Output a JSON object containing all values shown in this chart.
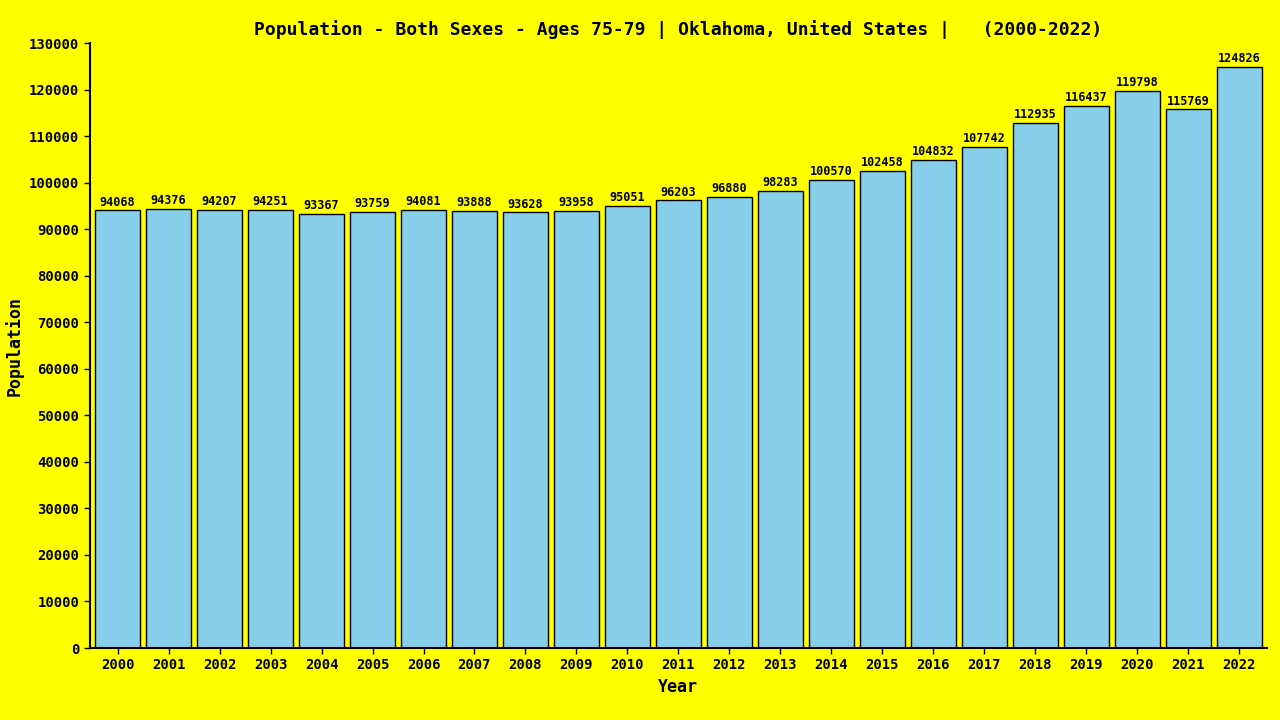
{
  "title": "Population - Both Sexes - Ages 75-79 | Oklahoma, United States |   (2000-2022)",
  "xlabel": "Year",
  "ylabel": "Population",
  "background_color": "#FFFF00",
  "bar_color": "#87CEEB",
  "bar_edge_color": "#000000",
  "years": [
    2000,
    2001,
    2002,
    2003,
    2004,
    2005,
    2006,
    2007,
    2008,
    2009,
    2010,
    2011,
    2012,
    2013,
    2014,
    2015,
    2016,
    2017,
    2018,
    2019,
    2020,
    2021,
    2022
  ],
  "values": [
    94068,
    94376,
    94207,
    94251,
    93367,
    93759,
    94081,
    93888,
    93628,
    93958,
    95051,
    96203,
    96880,
    98283,
    100570,
    102458,
    104832,
    107742,
    112935,
    116437,
    119798,
    115769,
    124826
  ],
  "ylim": [
    0,
    130000
  ],
  "yticks": [
    0,
    10000,
    20000,
    30000,
    40000,
    50000,
    60000,
    70000,
    80000,
    90000,
    100000,
    110000,
    120000,
    130000
  ],
  "title_fontsize": 13,
  "axis_label_fontsize": 12,
  "tick_fontsize": 10,
  "bar_label_fontsize": 8.5,
  "text_color": "#000000",
  "bar_width": 0.88
}
